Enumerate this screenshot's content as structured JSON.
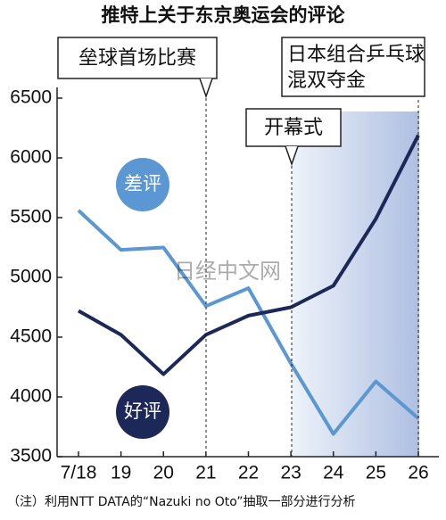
{
  "chart_data": {
    "type": "line",
    "title": "推特上关于东京奥运会的评论",
    "categories": [
      "7/18",
      "19",
      "20",
      "21",
      "22",
      "23",
      "24",
      "25",
      "26"
    ],
    "series": [
      {
        "name": "差评",
        "color": "#5b97d2",
        "values": [
          5560,
          5230,
          5250,
          4760,
          4910,
          4280,
          3690,
          4130,
          3820
        ]
      },
      {
        "name": "好评",
        "color": "#1c2858",
        "values": [
          4720,
          4520,
          4190,
          4520,
          4680,
          4750,
          4930,
          5490,
          6190
        ]
      }
    ],
    "ylim": [
      3500,
      6500
    ],
    "yticks": [
      3500,
      4000,
      4500,
      5000,
      5500,
      6000,
      6500
    ],
    "annotations": [
      "垒球首场比赛",
      "开幕式",
      [
        "日本组合乒乓球",
        "混双夺金"
      ]
    ],
    "watermark": "日经中文网",
    "note": "（注）利用NTT DATA的“Nazuki no Oto”抽取一部分进行分析"
  }
}
